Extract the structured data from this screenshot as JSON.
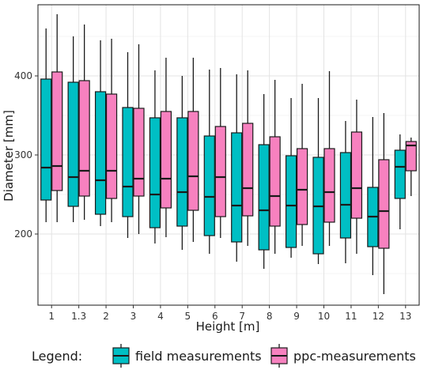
{
  "chart_data": {
    "type": "boxplot",
    "xlabel": "Height [m]",
    "ylabel": "Diameter [mm]",
    "ylim": [
      110,
      490
    ],
    "yticks": [
      200,
      300,
      400
    ],
    "categories": [
      "1",
      "1.3",
      "2",
      "3",
      "4",
      "5",
      "6",
      "7",
      "8",
      "9",
      "10",
      "11",
      "12",
      "13"
    ],
    "legend": {
      "title": "Legend:",
      "position": "bottom"
    },
    "grid": true,
    "series": [
      {
        "name": "field measurements",
        "color": "#00BFC4",
        "boxes": [
          {
            "min": 215,
            "q1": 243,
            "median": 284,
            "q3": 396,
            "max": 460
          },
          {
            "min": 215,
            "q1": 235,
            "median": 272,
            "q3": 392,
            "max": 450
          },
          {
            "min": 210,
            "q1": 225,
            "median": 268,
            "q3": 380,
            "max": 445
          },
          {
            "min": 195,
            "q1": 222,
            "median": 260,
            "q3": 360,
            "max": 430
          },
          {
            "min": 188,
            "q1": 208,
            "median": 250,
            "q3": 347,
            "max": 407
          },
          {
            "min": 180,
            "q1": 210,
            "median": 253,
            "q3": 347,
            "max": 400
          },
          {
            "min": 175,
            "q1": 198,
            "median": 247,
            "q3": 324,
            "max": 408
          },
          {
            "min": 165,
            "q1": 190,
            "median": 236,
            "q3": 328,
            "max": 402
          },
          {
            "min": 156,
            "q1": 180,
            "median": 230,
            "q3": 313,
            "max": 377
          },
          {
            "min": 170,
            "q1": 183,
            "median": 236,
            "q3": 299,
            "max": 372
          },
          {
            "min": 162,
            "q1": 175,
            "median": 235,
            "q3": 297,
            "max": 372
          },
          {
            "min": 163,
            "q1": 195,
            "median": 237,
            "q3": 303,
            "max": 343
          },
          {
            "min": 148,
            "q1": 184,
            "median": 222,
            "q3": 259,
            "max": 348
          },
          {
            "min": 206,
            "q1": 245,
            "median": 285,
            "q3": 306,
            "max": 326
          }
        ]
      },
      {
        "name": "ppc-measurements",
        "color": "#F781BF",
        "boxes": [
          {
            "min": 215,
            "q1": 255,
            "median": 286,
            "q3": 405,
            "max": 478
          },
          {
            "min": 218,
            "q1": 248,
            "median": 280,
            "q3": 394,
            "max": 465
          },
          {
            "min": 215,
            "q1": 245,
            "median": 280,
            "q3": 377,
            "max": 447
          },
          {
            "min": 200,
            "q1": 248,
            "median": 270,
            "q3": 359,
            "max": 440
          },
          {
            "min": 196,
            "q1": 233,
            "median": 270,
            "q3": 355,
            "max": 423
          },
          {
            "min": 190,
            "q1": 230,
            "median": 273,
            "q3": 355,
            "max": 423
          },
          {
            "min": 195,
            "q1": 222,
            "median": 272,
            "q3": 336,
            "max": 410
          },
          {
            "min": 185,
            "q1": 223,
            "median": 258,
            "q3": 340,
            "max": 407
          },
          {
            "min": 175,
            "q1": 210,
            "median": 248,
            "q3": 323,
            "max": 395
          },
          {
            "min": 185,
            "q1": 212,
            "median": 256,
            "q3": 308,
            "max": 390
          },
          {
            "min": 185,
            "q1": 215,
            "median": 253,
            "q3": 308,
            "max": 406
          },
          {
            "min": 175,
            "q1": 220,
            "median": 258,
            "q3": 329,
            "max": 370
          },
          {
            "min": 124,
            "q1": 182,
            "median": 229,
            "q3": 294,
            "max": 353
          },
          {
            "min": 248,
            "q1": 280,
            "median": 312,
            "q3": 317,
            "max": 322
          }
        ]
      }
    ]
  }
}
